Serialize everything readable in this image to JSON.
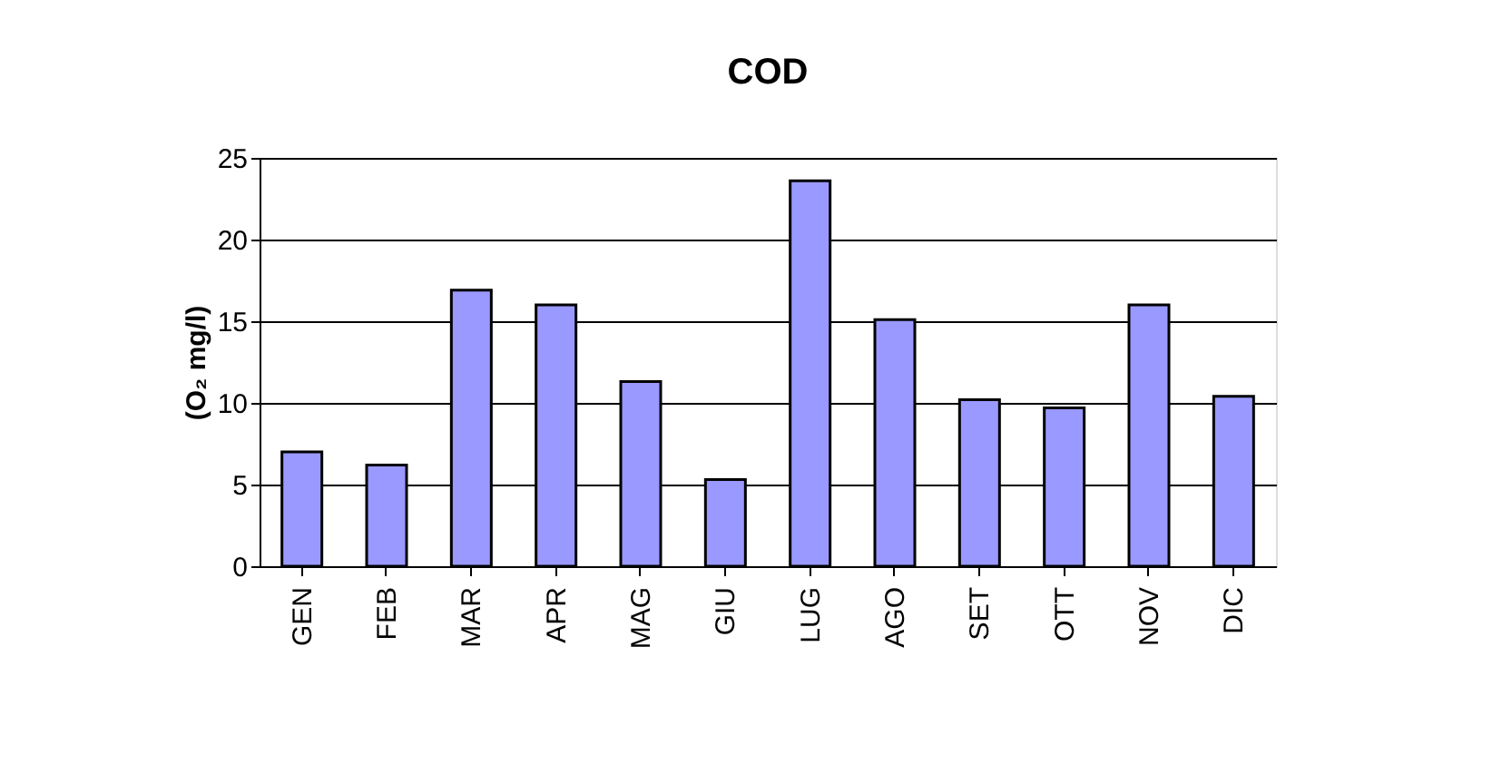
{
  "chart_data": {
    "type": "bar",
    "title": "COD",
    "ylabel": "(O₂ mg/l)",
    "categories": [
      "GEN",
      "FEB",
      "MAR",
      "APR",
      "MAG",
      "GIU",
      "LUG",
      "AGO",
      "SET",
      "OTT",
      "NOV",
      "DIC"
    ],
    "values": [
      7.0,
      6.2,
      16.9,
      16.0,
      11.3,
      5.3,
      23.6,
      15.1,
      10.2,
      9.7,
      16.0,
      10.4
    ],
    "color": "#9999ff",
    "ylim": [
      0,
      25
    ],
    "yticks": [
      0,
      5,
      10,
      15,
      20,
      25
    ],
    "grid": "y"
  }
}
